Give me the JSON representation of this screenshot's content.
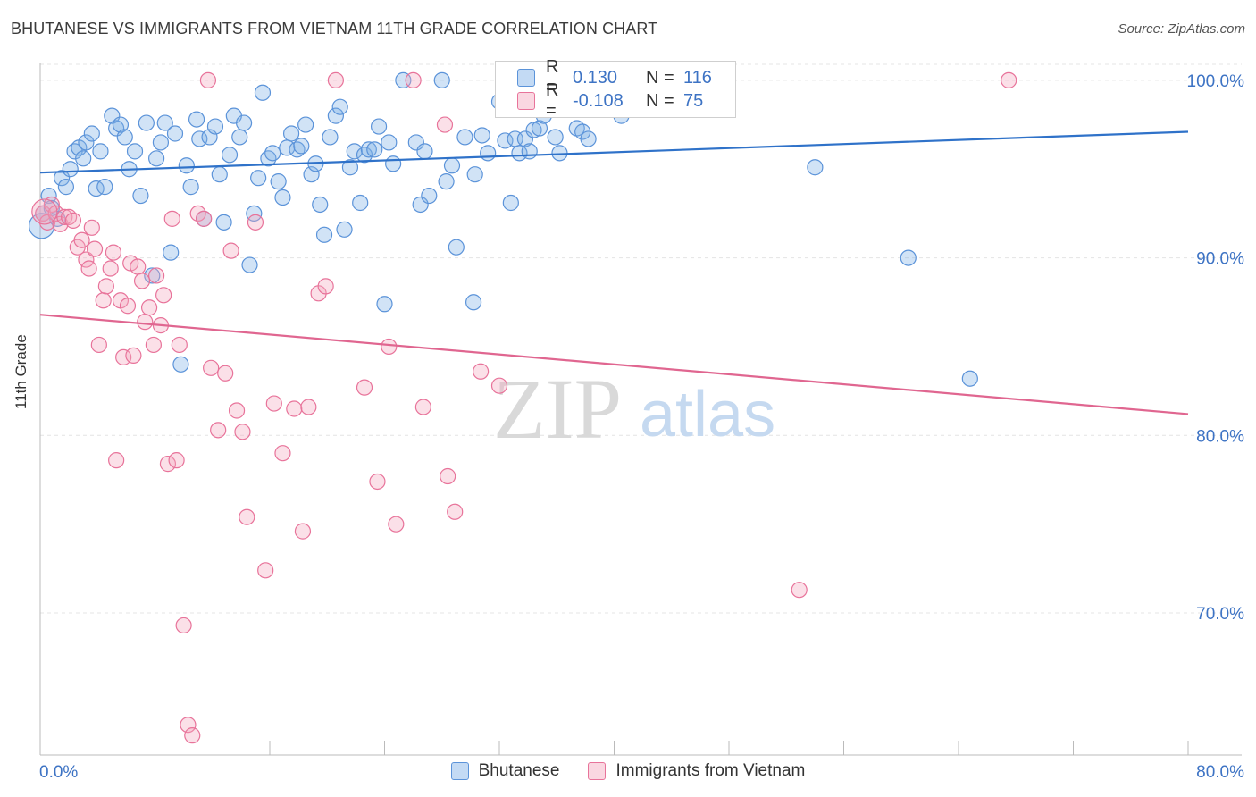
{
  "header": {
    "title": "BHUTANESE VS IMMIGRANTS FROM VIETNAM 11TH GRADE CORRELATION CHART",
    "source": "Source: ZipAtlas.com"
  },
  "watermark": {
    "zip": "ZIP",
    "atlas": "atlas"
  },
  "legend": {
    "rows": [
      {
        "r_label": "R =",
        "r_value": "0.130",
        "n_label": "N =",
        "n_value": "116",
        "color": "#7aaee6"
      },
      {
        "r_label": "R =",
        "r_value": "-0.108",
        "n_label": "N =",
        "n_value": "75",
        "color": "#f3a6bd"
      }
    ]
  },
  "chart_data": {
    "type": "scatter",
    "title": "BHUTANESE VS IMMIGRANTS FROM VIETNAM 11TH GRADE CORRELATION CHART",
    "xlabel": "",
    "ylabel": "11th Grade",
    "xlim": [
      0,
      80
    ],
    "ylim": [
      62,
      101
    ],
    "x_tick_labels": [
      "0.0%",
      "80.0%"
    ],
    "y_ticks": [
      70,
      80,
      90,
      100
    ],
    "y_tick_labels": [
      "70.0%",
      "80.0%",
      "90.0%",
      "100.0%"
    ],
    "grid": true,
    "legend_position": "bottom",
    "series": [
      {
        "name": "Bhutanese",
        "color": "#5b93d9",
        "fill": "rgba(122,174,230,0.35)",
        "trend": {
          "x": [
            0,
            80
          ],
          "y": [
            94.8,
            97.1
          ]
        },
        "points": [
          [
            0.2,
            92.5
          ],
          [
            0.6,
            93.5
          ],
          [
            0.8,
            92.8
          ],
          [
            1.2,
            92.2
          ],
          [
            1.5,
            94.5
          ],
          [
            1.8,
            94
          ],
          [
            2.1,
            95
          ],
          [
            2.4,
            96
          ],
          [
            2.7,
            96.2
          ],
          [
            3.0,
            95.6
          ],
          [
            3.2,
            96.5
          ],
          [
            3.6,
            97
          ],
          [
            3.9,
            93.9
          ],
          [
            4.2,
            96
          ],
          [
            4.5,
            94
          ],
          [
            5.0,
            98
          ],
          [
            5.3,
            97.3
          ],
          [
            5.6,
            97.5
          ],
          [
            5.9,
            96.8
          ],
          [
            6.2,
            95
          ],
          [
            6.6,
            96
          ],
          [
            7.0,
            93.5
          ],
          [
            7.4,
            97.6
          ],
          [
            7.8,
            89
          ],
          [
            8.1,
            95.6
          ],
          [
            8.4,
            96.5
          ],
          [
            8.7,
            97.6
          ],
          [
            9.1,
            90.3
          ],
          [
            9.4,
            97
          ],
          [
            9.8,
            84
          ],
          [
            10.2,
            95.2
          ],
          [
            10.5,
            94
          ],
          [
            10.9,
            97.8
          ],
          [
            11.1,
            96.7
          ],
          [
            11.4,
            92.2
          ],
          [
            11.8,
            96.8
          ],
          [
            12.2,
            97.4
          ],
          [
            12.5,
            94.7
          ],
          [
            12.8,
            92
          ],
          [
            13.2,
            95.8
          ],
          [
            13.5,
            98
          ],
          [
            13.9,
            96.8
          ],
          [
            14.2,
            97.6
          ],
          [
            14.6,
            89.6
          ],
          [
            14.9,
            92.5
          ],
          [
            15.2,
            94.5
          ],
          [
            15.5,
            99.3
          ],
          [
            15.9,
            95.6
          ],
          [
            16.2,
            95.9
          ],
          [
            16.6,
            94.3
          ],
          [
            16.9,
            93.4
          ],
          [
            17.2,
            96.2
          ],
          [
            17.5,
            97
          ],
          [
            17.9,
            96.1
          ],
          [
            18.2,
            96.3
          ],
          [
            18.5,
            97.5
          ],
          [
            18.9,
            94.7
          ],
          [
            19.2,
            95.3
          ],
          [
            19.5,
            93
          ],
          [
            19.8,
            91.3
          ],
          [
            20.2,
            96.8
          ],
          [
            20.6,
            98
          ],
          [
            20.9,
            98.5
          ],
          [
            21.2,
            91.6
          ],
          [
            21.6,
            95.1
          ],
          [
            21.9,
            96
          ],
          [
            22.3,
            93.1
          ],
          [
            22.6,
            95.8
          ],
          [
            22.9,
            96.1
          ],
          [
            23.3,
            96.1
          ],
          [
            23.6,
            97.4
          ],
          [
            24.0,
            87.4
          ],
          [
            24.3,
            96.5
          ],
          [
            24.6,
            95.3
          ],
          [
            25.3,
            100
          ],
          [
            26.2,
            96.5
          ],
          [
            26.5,
            93
          ],
          [
            26.8,
            96
          ],
          [
            27.1,
            93.5
          ],
          [
            28.0,
            100
          ],
          [
            28.3,
            94.3
          ],
          [
            28.7,
            95.2
          ],
          [
            29.0,
            90.6
          ],
          [
            29.6,
            96.8
          ],
          [
            30.2,
            87.5
          ],
          [
            30.3,
            94.7
          ],
          [
            30.8,
            96.9
          ],
          [
            31.2,
            95.9
          ],
          [
            32.0,
            98.8
          ],
          [
            32.4,
            96.6
          ],
          [
            32.8,
            93.1
          ],
          [
            33.1,
            96.7
          ],
          [
            33.4,
            95.9
          ],
          [
            33.8,
            96.7
          ],
          [
            34.1,
            96
          ],
          [
            34.4,
            97.2
          ],
          [
            34.8,
            97.3
          ],
          [
            35.1,
            98
          ],
          [
            35.4,
            98.5
          ],
          [
            35.9,
            96.8
          ],
          [
            36.2,
            95.9
          ],
          [
            37.0,
            98.8
          ],
          [
            37.4,
            97.3
          ],
          [
            37.8,
            97.1
          ],
          [
            38.2,
            96.7
          ],
          [
            38.5,
            98.5
          ],
          [
            40.0,
            99
          ],
          [
            40.5,
            98
          ],
          [
            41.5,
            100
          ],
          [
            54.0,
            95.1
          ],
          [
            60.5,
            90
          ],
          [
            64.8,
            83.2
          ],
          [
            0.1,
            91.8
          ]
        ]
      },
      {
        "name": "Immigrants from Vietnam",
        "color": "#e8739a",
        "fill": "rgba(243,166,189,0.35)",
        "trend": {
          "x": [
            0,
            80
          ],
          "y": [
            86.8,
            81.2
          ]
        },
        "points": [
          [
            0.2,
            92.5
          ],
          [
            0.5,
            92
          ],
          [
            0.8,
            93
          ],
          [
            1.1,
            92.5
          ],
          [
            1.4,
            91.9
          ],
          [
            1.7,
            92.3
          ],
          [
            2.0,
            92.3
          ],
          [
            2.3,
            92.1
          ],
          [
            2.6,
            90.6
          ],
          [
            2.9,
            91
          ],
          [
            3.2,
            89.9
          ],
          [
            3.4,
            89.4
          ],
          [
            3.6,
            91.7
          ],
          [
            3.8,
            90.5
          ],
          [
            4.1,
            85.1
          ],
          [
            4.4,
            87.6
          ],
          [
            4.6,
            88.4
          ],
          [
            4.9,
            89.4
          ],
          [
            5.1,
            90.3
          ],
          [
            5.3,
            78.6
          ],
          [
            5.6,
            87.6
          ],
          [
            5.8,
            84.4
          ],
          [
            6.1,
            87.3
          ],
          [
            6.3,
            89.7
          ],
          [
            6.5,
            84.5
          ],
          [
            6.8,
            89.5
          ],
          [
            7.1,
            88.7
          ],
          [
            7.3,
            86.4
          ],
          [
            7.6,
            87.2
          ],
          [
            7.9,
            85.1
          ],
          [
            8.1,
            89
          ],
          [
            8.4,
            86.2
          ],
          [
            8.6,
            87.9
          ],
          [
            8.9,
            78.4
          ],
          [
            9.2,
            92.2
          ],
          [
            9.5,
            78.6
          ],
          [
            9.7,
            85.1
          ],
          [
            10.0,
            69.3
          ],
          [
            10.3,
            63.7
          ],
          [
            10.6,
            63.1
          ],
          [
            11.0,
            92.5
          ],
          [
            11.4,
            92.2
          ],
          [
            11.7,
            100
          ],
          [
            11.9,
            83.8
          ],
          [
            12.4,
            80.3
          ],
          [
            12.9,
            83.5
          ],
          [
            13.3,
            90.4
          ],
          [
            13.7,
            81.4
          ],
          [
            14.1,
            80.2
          ],
          [
            14.4,
            75.4
          ],
          [
            15.0,
            92
          ],
          [
            15.7,
            72.4
          ],
          [
            16.3,
            81.8
          ],
          [
            16.9,
            79
          ],
          [
            17.7,
            81.5
          ],
          [
            18.3,
            74.6
          ],
          [
            18.7,
            81.6
          ],
          [
            19.4,
            88
          ],
          [
            19.9,
            88.4
          ],
          [
            20.6,
            100
          ],
          [
            22.6,
            82.7
          ],
          [
            23.5,
            77.4
          ],
          [
            24.3,
            85
          ],
          [
            24.8,
            75
          ],
          [
            26.0,
            100
          ],
          [
            26.7,
            81.6
          ],
          [
            28.2,
            97.5
          ],
          [
            28.4,
            77.7
          ],
          [
            28.9,
            75.7
          ],
          [
            30.7,
            83.6
          ],
          [
            32.0,
            82.8
          ],
          [
            37.4,
            100
          ],
          [
            52.9,
            71.3
          ],
          [
            67.5,
            100
          ],
          [
            0.3,
            92.6
          ]
        ]
      }
    ]
  }
}
